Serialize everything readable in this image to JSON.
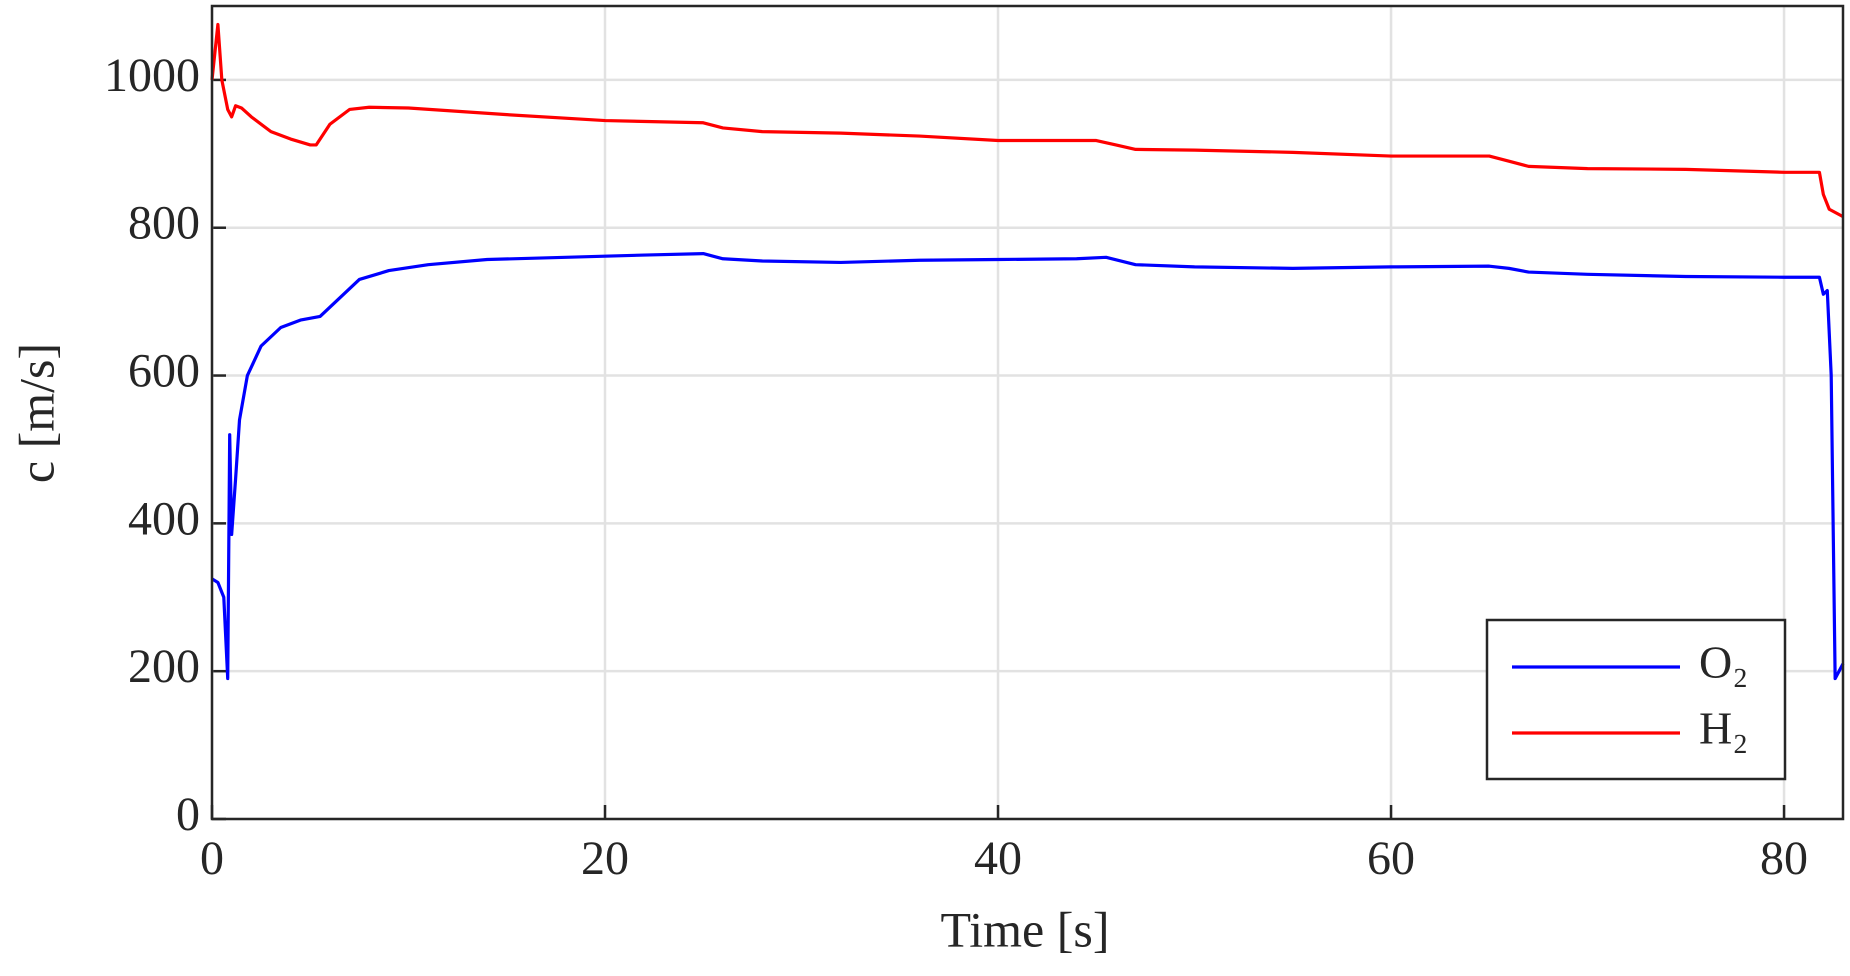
{
  "chart_data": {
    "type": "line",
    "xlabel": "Time [s]",
    "ylabel": "c [m/s]",
    "xlim": [
      0,
      83
    ],
    "ylim": [
      0,
      1100
    ],
    "xticks": [
      0,
      20,
      40,
      60,
      80
    ],
    "yticks": [
      0,
      200,
      400,
      600,
      800,
      1000
    ],
    "grid": true,
    "legend": "lower right",
    "series": [
      {
        "name": "O₂",
        "color": "#0000ff",
        "x": [
          0,
          0.3,
          0.6,
          0.8,
          0.9,
          1.0,
          1.2,
          1.4,
          1.8,
          2.5,
          3.5,
          4.5,
          5.5,
          6.5,
          7.5,
          9,
          11,
          14,
          18,
          22,
          25,
          26,
          28,
          32,
          36,
          40,
          44,
          45.5,
          47,
          50,
          55,
          60,
          65,
          66,
          67,
          70,
          75,
          80,
          81.8,
          82.0,
          82.2,
          82.4,
          82.6,
          83
        ],
        "values": [
          325,
          320,
          300,
          190,
          520,
          385,
          460,
          540,
          600,
          640,
          665,
          675,
          680,
          705,
          730,
          742,
          750,
          757,
          760,
          763,
          765,
          758,
          755,
          753,
          756,
          757,
          758,
          760,
          750,
          747,
          745,
          747,
          748,
          745,
          740,
          737,
          734,
          733,
          733,
          710,
          715,
          600,
          190,
          210
        ]
      },
      {
        "name": "H₂",
        "color": "#ff0000",
        "x": [
          0,
          0.3,
          0.5,
          0.8,
          1.0,
          1.2,
          1.5,
          2,
          3,
          4,
          5,
          5.3,
          6,
          7,
          8,
          10,
          15,
          20,
          25,
          26,
          28,
          32,
          36,
          40,
          45,
          46,
          47,
          50,
          55,
          60,
          65,
          66,
          67,
          70,
          75,
          80,
          81.8,
          82.0,
          82.3,
          83
        ],
        "values": [
          1000,
          1075,
          1000,
          960,
          950,
          965,
          962,
          950,
          930,
          920,
          912,
          912,
          940,
          960,
          963,
          962,
          953,
          945,
          942,
          935,
          930,
          928,
          924,
          918,
          918,
          912,
          906,
          905,
          902,
          897,
          897,
          890,
          883,
          880,
          879,
          875,
          875,
          845,
          825,
          815
        ]
      }
    ]
  }
}
